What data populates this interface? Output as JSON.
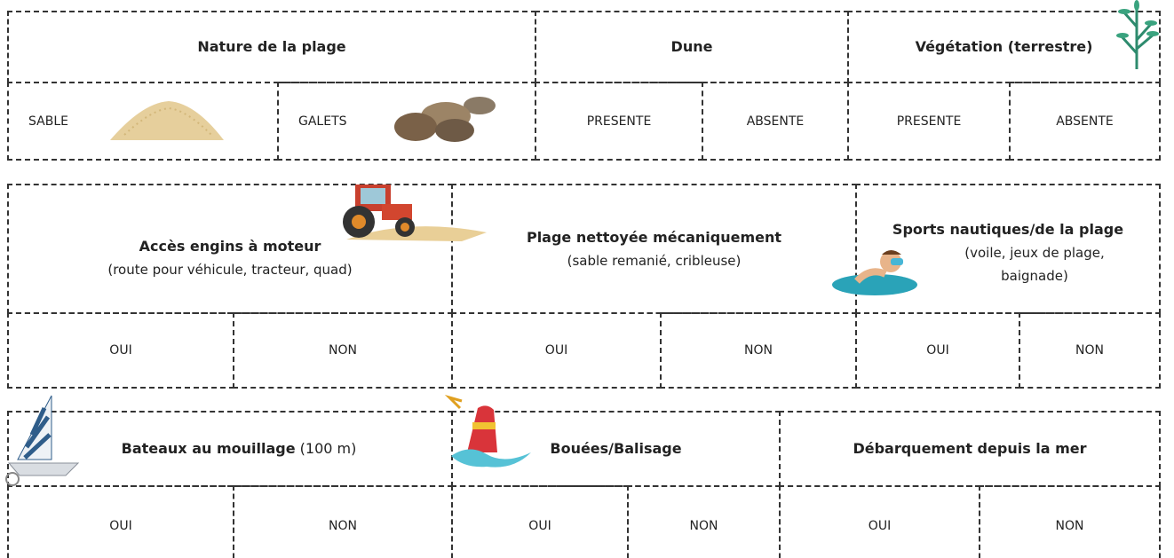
{
  "tables": [
    {
      "columns": [
        {
          "title": "Nature de la plage",
          "options": [
            "SABLE",
            "GALETS"
          ]
        },
        {
          "title": "Dune",
          "options": [
            "PRESENTE",
            "ABSENTE"
          ]
        },
        {
          "title": "Végétation (terrestre)",
          "options": [
            "PRESENTE",
            "ABSENTE"
          ]
        }
      ]
    },
    {
      "columns": [
        {
          "title": "Accès engins à moteur",
          "subtitle": "(route pour véhicule, tracteur, quad)",
          "options": [
            "OUI",
            "NON"
          ]
        },
        {
          "title": "Plage nettoyée mécaniquement",
          "subtitle": "(sable remanié, cribleuse)",
          "options": [
            "OUI",
            "NON"
          ]
        },
        {
          "title": "Sports nautiques/de la plage",
          "subtitle": "(voile, jeux de plage, baignade)",
          "options": [
            "OUI",
            "NON"
          ]
        }
      ]
    },
    {
      "columns": [
        {
          "title": "Bateaux au mouillage",
          "subtitle": "(100 m)",
          "options": [
            "OUI",
            "NON"
          ]
        },
        {
          "title": "Bouées/Balisage",
          "options": [
            "OUI",
            "NON"
          ]
        },
        {
          "title": "Débarquement depuis la mer",
          "options": [
            "OUI",
            "NON"
          ]
        }
      ]
    }
  ]
}
